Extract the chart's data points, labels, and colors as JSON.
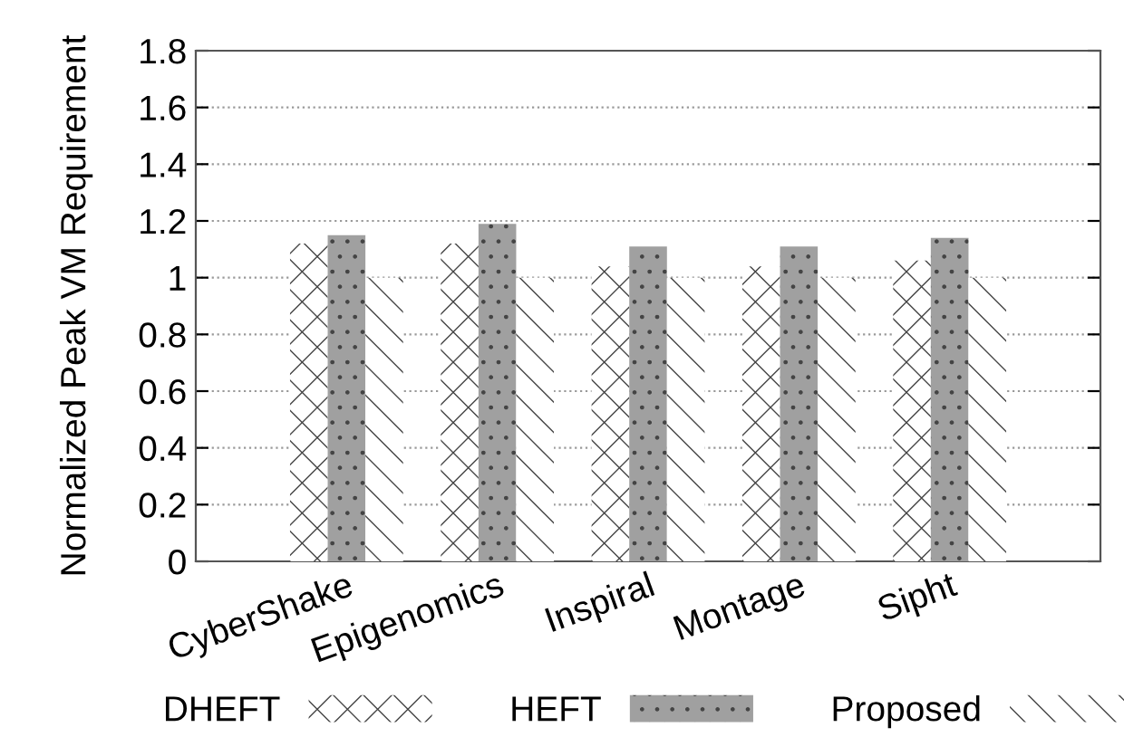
{
  "chart_data": {
    "type": "bar",
    "ylabel": "Normalized Peak VM Requirement",
    "categories": [
      "CyberShake",
      "Epigenomics",
      "Inspiral",
      "Montage",
      "Sipht"
    ],
    "series": [
      {
        "name": "DHEFT",
        "color": "#ffffff",
        "values": [
          1.12,
          1.12,
          1.04,
          1.04,
          1.06
        ]
      },
      {
        "name": "HEFT",
        "color": "#a0a0a0",
        "values": [
          1.15,
          1.19,
          1.11,
          1.11,
          1.14
        ]
      },
      {
        "name": "Proposed",
        "color": "#ffffff",
        "values": [
          1.0,
          1.0,
          1.0,
          1.0,
          1.0
        ]
      }
    ],
    "ylim": [
      0,
      1.8
    ],
    "yticks": [
      {
        "value": 0,
        "label": "0"
      },
      {
        "value": 0.2,
        "label": "0.2"
      },
      {
        "value": 0.4,
        "label": "0.4"
      },
      {
        "value": 0.6,
        "label": "0.6"
      },
      {
        "value": 0.8,
        "label": "0.8"
      },
      {
        "value": 1,
        "label": "1"
      },
      {
        "value": 1.2,
        "label": "1.2"
      },
      {
        "value": 1.4,
        "label": "1.4"
      },
      {
        "value": 1.6,
        "label": "1.6"
      },
      {
        "value": 1.8,
        "label": "1.8"
      }
    ],
    "grid": "y",
    "legend": "bottom"
  }
}
